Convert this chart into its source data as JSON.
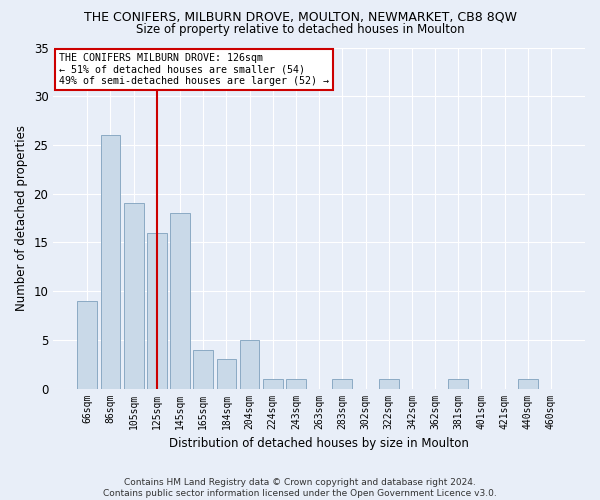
{
  "title": "THE CONIFERS, MILBURN DROVE, MOULTON, NEWMARKET, CB8 8QW",
  "subtitle": "Size of property relative to detached houses in Moulton",
  "xlabel": "Distribution of detached houses by size in Moulton",
  "ylabel": "Number of detached properties",
  "categories": [
    "66sqm",
    "86sqm",
    "105sqm",
    "125sqm",
    "145sqm",
    "165sqm",
    "184sqm",
    "204sqm",
    "224sqm",
    "243sqm",
    "263sqm",
    "283sqm",
    "302sqm",
    "322sqm",
    "342sqm",
    "362sqm",
    "381sqm",
    "401sqm",
    "421sqm",
    "440sqm",
    "460sqm"
  ],
  "values": [
    9,
    26,
    19,
    16,
    18,
    4,
    3,
    5,
    1,
    1,
    0,
    1,
    0,
    1,
    0,
    0,
    1,
    0,
    0,
    1,
    0
  ],
  "bar_color": "#c9d9e8",
  "bar_edge_color": "#8baac4",
  "background_color": "#e8eef8",
  "grid_color": "#ffffff",
  "vline_color": "#cc0000",
  "vline_x_index": 3,
  "annotation_text_line1": "THE CONIFERS MILBURN DROVE: 126sqm",
  "annotation_text_line2": "← 51% of detached houses are smaller (54)",
  "annotation_text_line3": "49% of semi-detached houses are larger (52) →",
  "ylim": [
    0,
    35
  ],
  "yticks": [
    0,
    5,
    10,
    15,
    20,
    25,
    30,
    35
  ],
  "footer_line1": "Contains HM Land Registry data © Crown copyright and database right 2024.",
  "footer_line2": "Contains public sector information licensed under the Open Government Licence v3.0."
}
